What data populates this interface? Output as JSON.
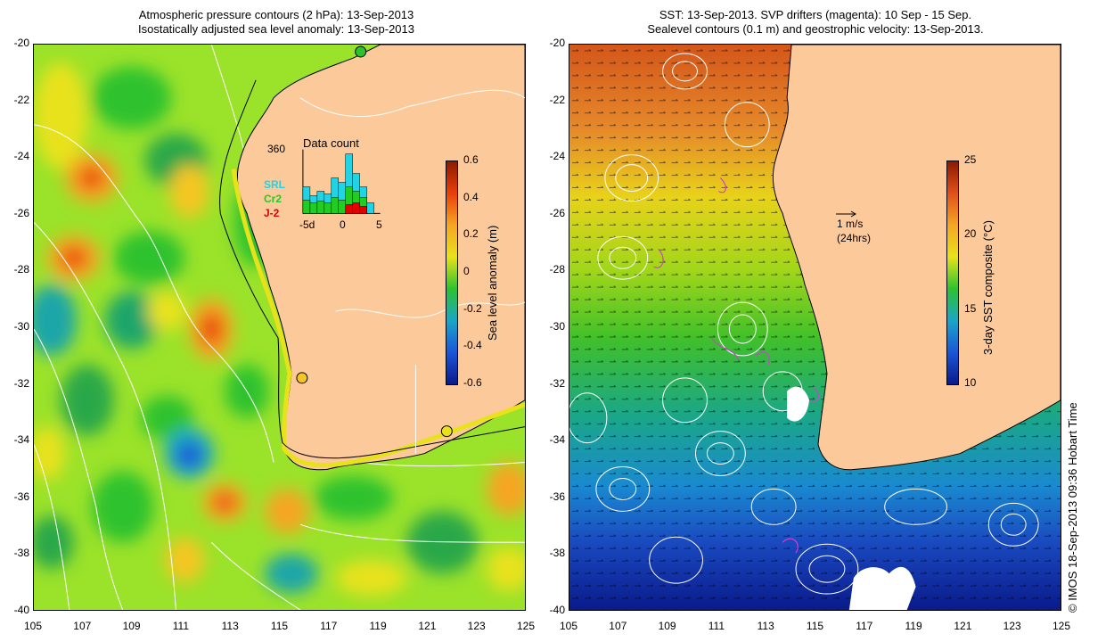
{
  "left": {
    "title_line1": "Atmospheric pressure contours (2 hPa): 13-Sep-2013",
    "title_line2": "Isostatically adjusted sea level anomaly: 13-Sep-2013",
    "colorbar_label": "Sea level anomaly (m)",
    "colorbar_ticks": [
      "0.6",
      "0.4",
      "0.2",
      "0",
      "-0.2",
      "-0.4",
      "-0.6"
    ],
    "colorbar_colors": [
      "#8b1a00",
      "#e8400a",
      "#f5a623",
      "#e8e21a",
      "#2ec22e",
      "#1aa6c8",
      "#1a56d6",
      "#0a1a8b"
    ],
    "inset": {
      "title": "Data count",
      "ymax": "360",
      "xticks": [
        "-5d",
        "0",
        "5"
      ],
      "legend": [
        {
          "name": "SRL",
          "color": "#22d3e6"
        },
        {
          "name": "Cr2",
          "color": "#22cc22"
        },
        {
          "name": "J-2",
          "color": "#e00000"
        }
      ]
    }
  },
  "right": {
    "title_line1": "SST: 13-Sep-2013. SVP drifters (magenta): 10 Sep - 15 Sep.",
    "title_line2": "Sealevel contours (0.1 m) and geostrophic velocity: 13-Sep-2013.",
    "colorbar_label": "3-day SST composite (°C)",
    "colorbar_ticks": [
      "25",
      "20",
      "15",
      "10"
    ],
    "colorbar_colors": [
      "#8b1a00",
      "#e0501a",
      "#f5a623",
      "#e8e21a",
      "#2ec22e",
      "#1aa6c8",
      "#1a56d6",
      "#0a1a8b"
    ],
    "velocity_scale": "1 m/s",
    "velocity_period": "(24hrs)"
  },
  "axes": {
    "yticks": [
      "-20",
      "-22",
      "-24",
      "-26",
      "-28",
      "-30",
      "-32",
      "-34",
      "-36",
      "-38",
      "-40"
    ],
    "xticks": [
      "105",
      "107",
      "109",
      "111",
      "113",
      "115",
      "117",
      "119",
      "121",
      "123",
      "125"
    ]
  },
  "credit": "© IMOS 18-Sep-2013 09:36 Hobart Time",
  "colors": {
    "land": "#fbc99a",
    "contour": "#ffffff",
    "coast": "#000000"
  }
}
